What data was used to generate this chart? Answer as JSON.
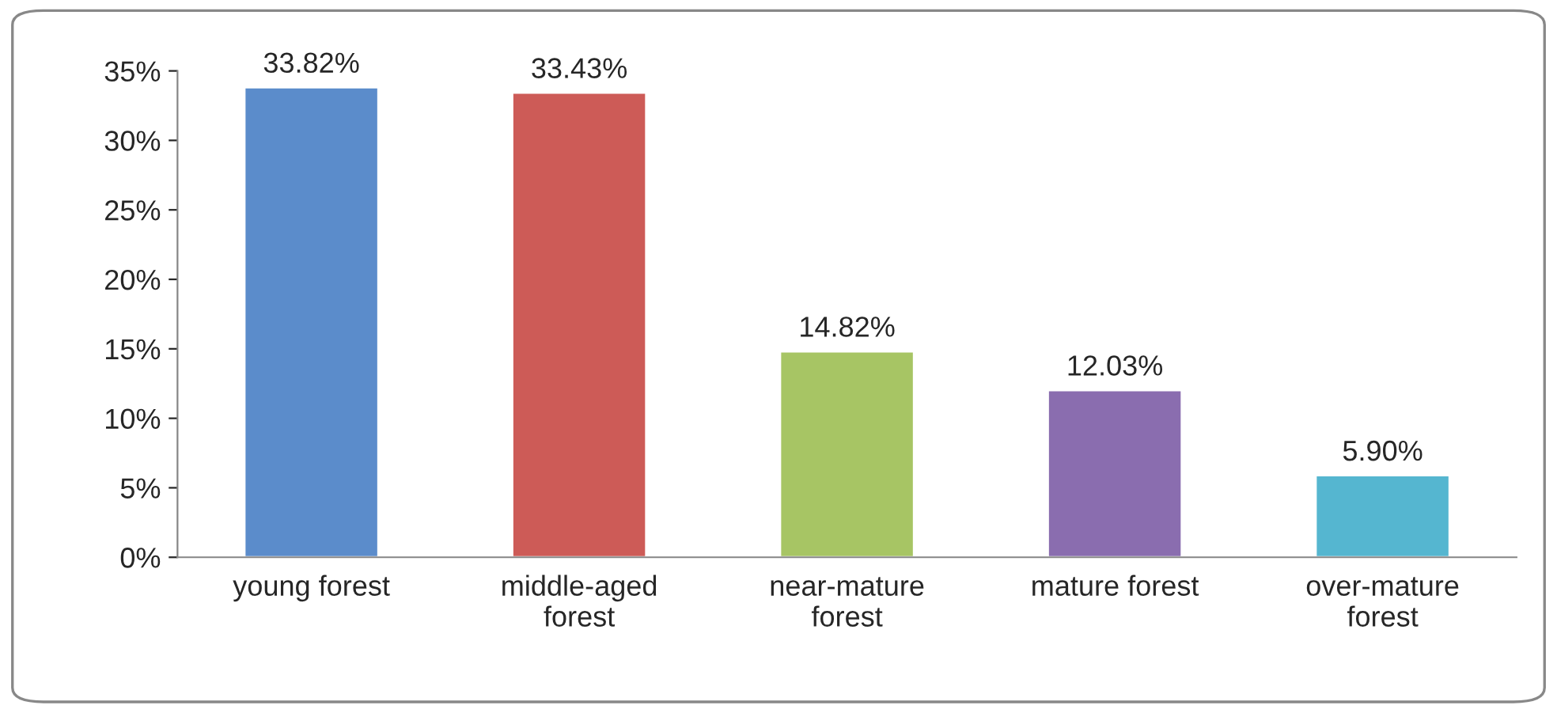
{
  "chart_data": {
    "type": "bar",
    "categories": [
      "young forest",
      "middle-aged\nforest",
      "near-mature\nforest",
      "mature forest",
      "over-mature\nforest"
    ],
    "values": [
      33.82,
      33.43,
      14.82,
      12.03,
      5.9
    ],
    "value_labels": [
      "33.82%",
      "33.43%",
      "14.82%",
      "12.03%",
      "5.90%"
    ],
    "colors": [
      "#5b8ccb",
      "#cd5b57",
      "#a7c564",
      "#8a6daf",
      "#55b6d0"
    ],
    "ylim": [
      0,
      35
    ],
    "yticks": [
      {
        "value": 0,
        "label": "0%"
      },
      {
        "value": 5,
        "label": "5%"
      },
      {
        "value": 10,
        "label": "10%"
      },
      {
        "value": 15,
        "label": "15%"
      },
      {
        "value": 20,
        "label": "20%"
      },
      {
        "value": 25,
        "label": "25%"
      },
      {
        "value": 30,
        "label": "30%"
      },
      {
        "value": 35,
        "label": "35%"
      }
    ],
    "grid": false
  }
}
